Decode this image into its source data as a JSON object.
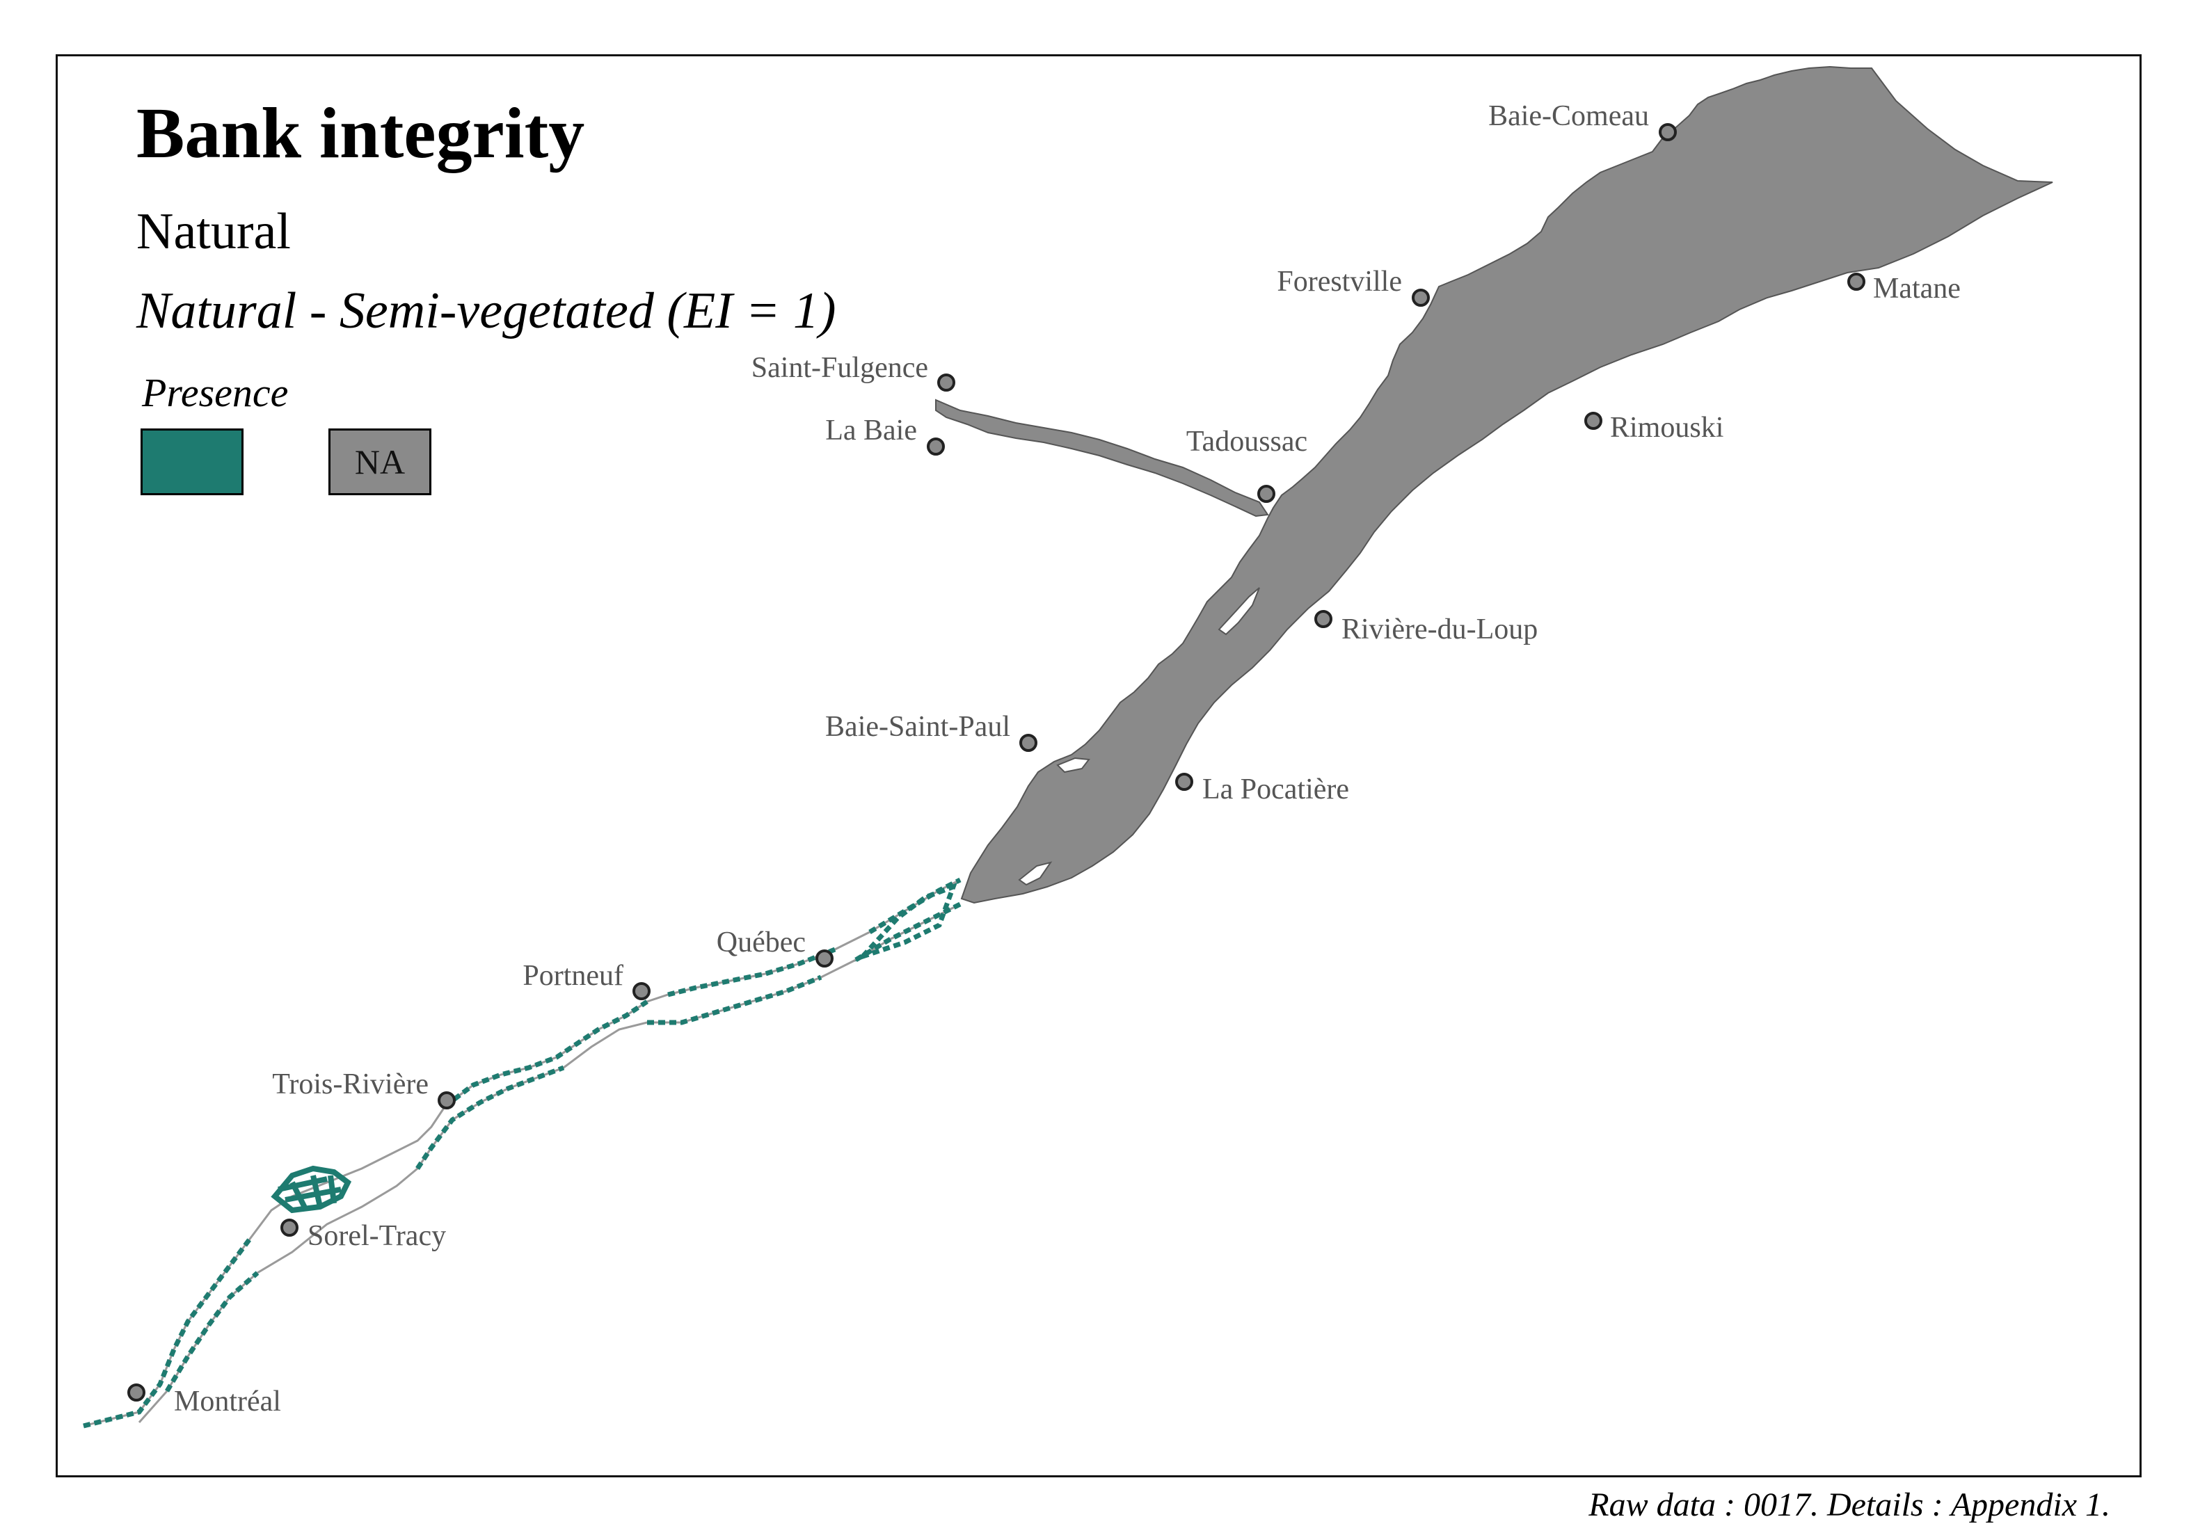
{
  "title": "Bank integrity",
  "subtitle": "Natural",
  "subtitle_detail": "Natural - Semi-vegetated (EI = 1)",
  "legend": {
    "title": "Presence",
    "items": [
      {
        "label": "",
        "color": "#1e7b70"
      },
      {
        "label": "NA",
        "color": "#8a8a8a"
      }
    ]
  },
  "cities": {
    "baie_comeau": "Baie-Comeau",
    "forestville": "Forestville",
    "matane": "Matane",
    "saint_fulgence": "Saint-Fulgence",
    "la_baie": "La Baie",
    "tadoussac": "Tadoussac",
    "rimouski": "Rimouski",
    "riviere_du_loup": "Rivière-du-Loup",
    "baie_saint_paul": "Baie-Saint-Paul",
    "la_pocatiere": "La Pocatière",
    "quebec": "Québec",
    "portneuf": "Portneuf",
    "trois_riviere": "Trois-Rivière",
    "sorel_tracy": "Sorel-Tracy",
    "montreal": "Montréal"
  },
  "caption": "Raw data : 0017. Details : Appendix 1.",
  "colors": {
    "presence": "#1e7b70",
    "na": "#8a8a8a",
    "city_marker": "#8a8a8a",
    "river_outline": "#9a9a9a"
  }
}
